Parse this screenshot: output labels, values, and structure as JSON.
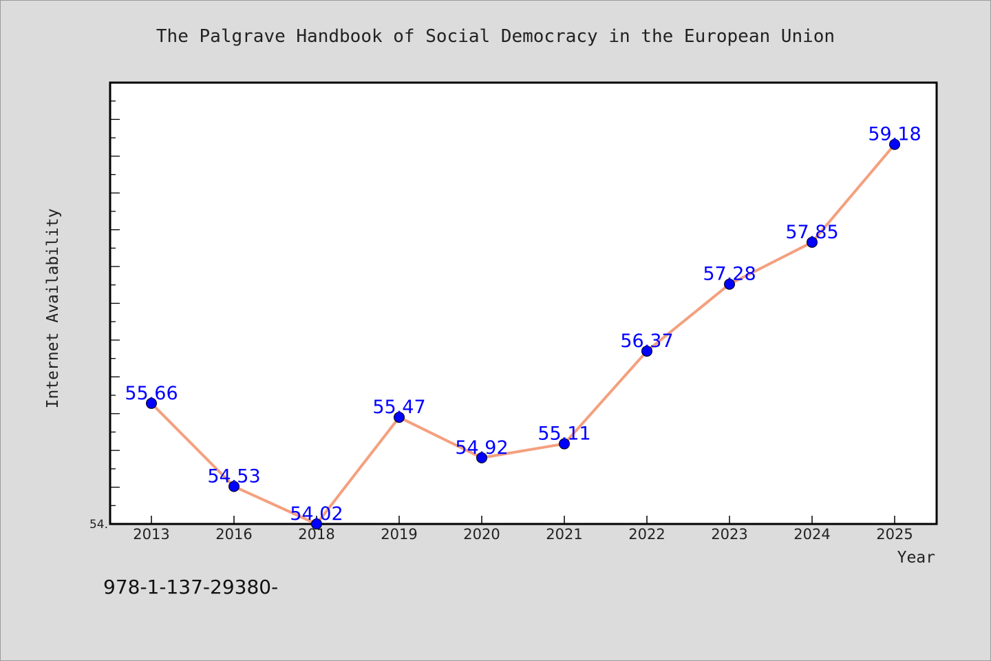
{
  "chart_data": {
    "type": "line",
    "title": "The Palgrave Handbook of Social Democracy in the European Union",
    "xlabel": "Year",
    "ylabel": "Internet Availability",
    "categories": [
      "2013",
      "2016",
      "2018",
      "2019",
      "2020",
      "2021",
      "2022",
      "2023",
      "2024",
      "2025"
    ],
    "series": [
      {
        "values": [
          55.66,
          54.53,
          54.02,
          55.47,
          54.92,
          55.11,
          56.37,
          57.28,
          57.85,
          59.18
        ],
        "labels": [
          "55.66",
          "54.53",
          "54.02",
          "55.47",
          "54.92",
          "55.11",
          "56.37",
          "57.28",
          "57.85",
          "59.18"
        ]
      }
    ],
    "ytick_label": "54.",
    "ylim": [
      54.02,
      60.02
    ],
    "grid": false,
    "colors": {
      "line": "#f4a07e",
      "marker": "#0000ff",
      "label": "#0000ff",
      "background": "#dcdcdc",
      "plot_background": "#ffffff"
    }
  },
  "footer_text": "978-1-137-29380-"
}
